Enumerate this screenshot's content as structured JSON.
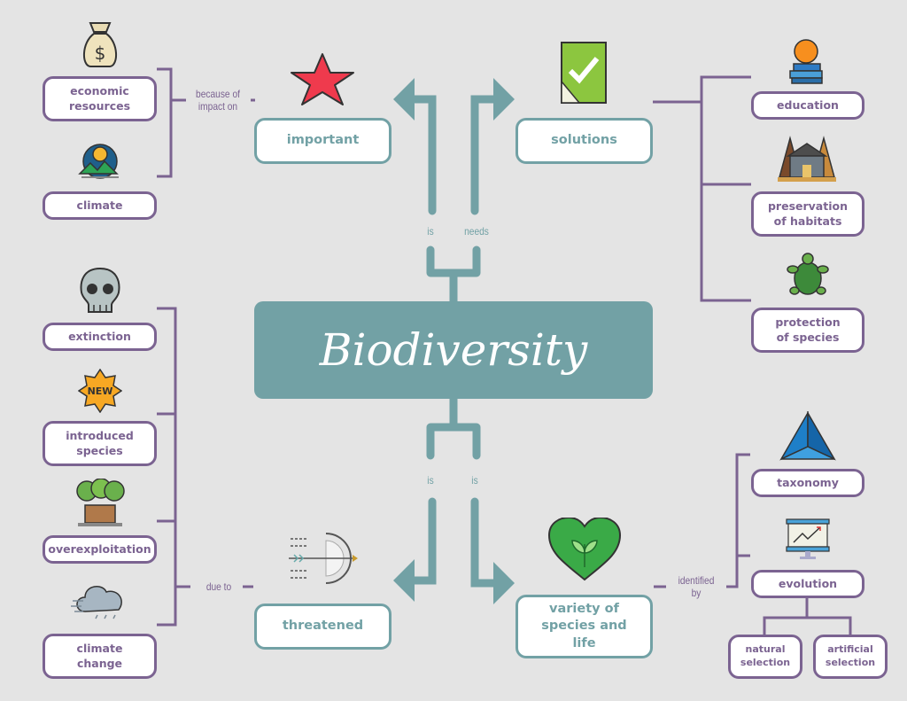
{
  "colors": {
    "background": "#e4e4e4",
    "teal": "#72a1a5",
    "purple": "#7b6391"
  },
  "center": {
    "title": "Biodiversity"
  },
  "branches": {
    "important": {
      "label": "important",
      "link": "is",
      "icon": "starfish-icon"
    },
    "solutions": {
      "label": "solutions",
      "link": "needs",
      "icon": "checkmark-icon"
    },
    "threatened": {
      "label": "threatened",
      "link": "is",
      "icon": "archery-target-icon"
    },
    "variety": {
      "label": "variety of species and life",
      "link": "is",
      "icon": "leaf-heart-icon"
    }
  },
  "important_because": {
    "link": "because of impact on",
    "items": [
      {
        "label": "economic resources",
        "icon": "money-bag-icon"
      },
      {
        "label": "climate",
        "icon": "sun-mountains-icon"
      }
    ]
  },
  "threatened_due": {
    "link": "due to",
    "items": [
      {
        "label": "extinction",
        "icon": "skull-icon"
      },
      {
        "label": "introduced species",
        "icon": "new-badge-icon",
        "badge": "NEW"
      },
      {
        "label": "overexploitation",
        "icon": "trees-icon"
      },
      {
        "label": "climate change",
        "icon": "storm-cloud-icon"
      }
    ]
  },
  "solutions_items": [
    {
      "label": "education",
      "icon": "books-orange-icon"
    },
    {
      "label": "preservation of habitats",
      "icon": "house-icon"
    },
    {
      "label": "protection of species",
      "icon": "turtle-icon"
    }
  ],
  "variety_identified": {
    "link": "identified by",
    "items": [
      {
        "label": "taxonomy",
        "icon": "pyramid-icon"
      },
      {
        "label": "evolution",
        "icon": "chart-board-icon"
      }
    ]
  },
  "evolution_types": [
    {
      "label": "natural selection"
    },
    {
      "label": "artificial selection"
    }
  ]
}
